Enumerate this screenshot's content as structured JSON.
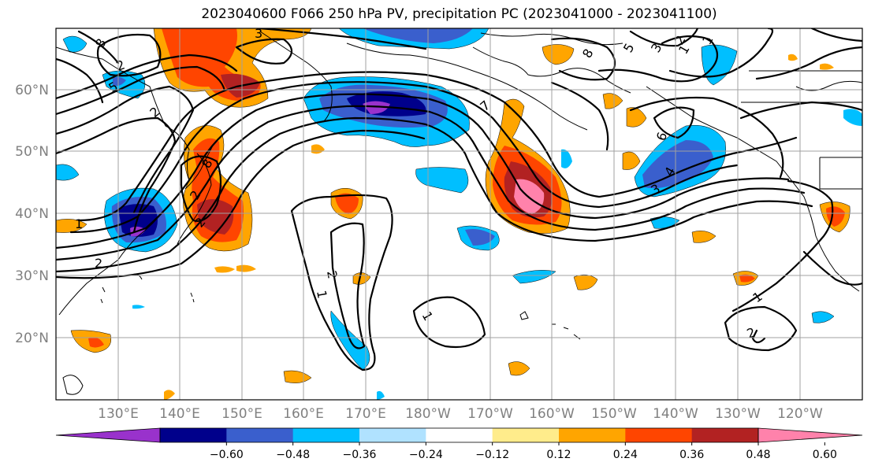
{
  "title": "2023040600 F066 250 hPa PV, precipitation PC (2023041000 - 2023041100)",
  "lat_labels": [
    "60°N",
    "50°N",
    "40°N",
    "30°N",
    "20°N"
  ],
  "lon_labels": [
    "130°E",
    "140°E",
    "150°E",
    "160°E",
    "170°E",
    "180°W",
    "170°W",
    "160°W",
    "150°W",
    "140°W",
    "130°W",
    "120°W"
  ],
  "colorbar": {
    "ticks": [
      "−0.60",
      "−0.48",
      "−0.36",
      "−0.24",
      "−0.12",
      "0.12",
      "0.24",
      "0.36",
      "0.48",
      "0.60"
    ],
    "colors": [
      "#9932cc",
      "#00008b",
      "#3a5fcd",
      "#00bfff",
      "#b0e2ff",
      "#ffffff",
      "#ffec8b",
      "#ffa500",
      "#ff4500",
      "#b22222",
      "#ff82ab"
    ]
  },
  "contour_labels": [
    "8",
    "3",
    "5",
    "2",
    "1",
    "8",
    "7",
    "2",
    "2",
    "1",
    "2",
    "1",
    "8",
    "5",
    "3",
    "2",
    "1",
    "2",
    "1",
    "6",
    "4",
    "3",
    "1",
    "2",
    "2"
  ]
}
